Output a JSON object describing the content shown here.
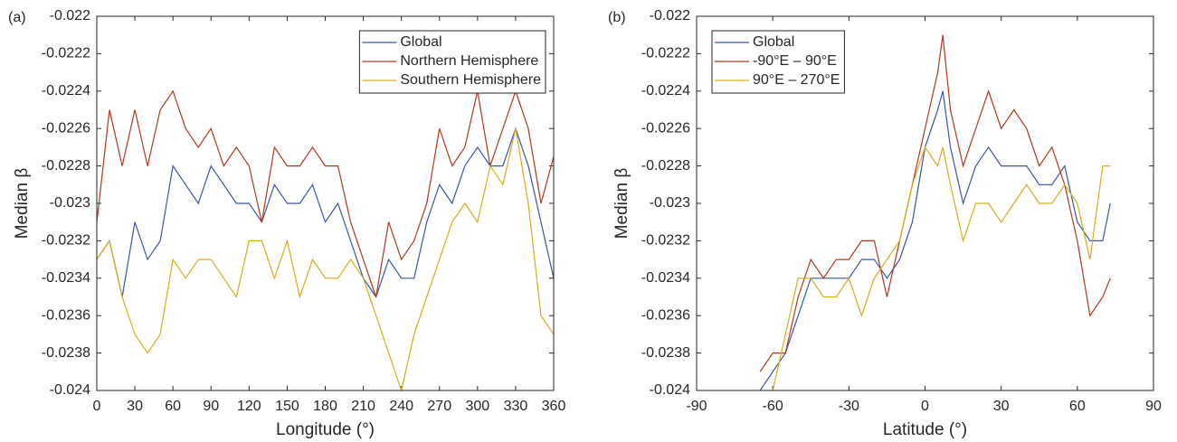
{
  "chart_data": [
    {
      "type": "line",
      "panel_label": "(a)",
      "x_label": "Longitude (°)",
      "y_label": "Median β",
      "legend": "northeast",
      "box": true,
      "x": [
        0,
        10,
        20,
        30,
        40,
        50,
        60,
        70,
        80,
        90,
        100,
        110,
        120,
        130,
        140,
        150,
        160,
        170,
        180,
        190,
        200,
        210,
        220,
        230,
        240,
        250,
        260,
        270,
        280,
        290,
        300,
        310,
        320,
        330,
        340,
        350,
        360
      ],
      "xlim": [
        0,
        360
      ],
      "xticks": [
        0,
        30,
        60,
        90,
        120,
        150,
        180,
        210,
        240,
        270,
        300,
        330,
        360
      ],
      "ylim": [
        -0.024,
        -0.022
      ],
      "yticks": [
        -0.024,
        -0.0238,
        -0.0236,
        -0.0234,
        -0.0232,
        -0.023,
        -0.0228,
        -0.0226,
        -0.0224,
        -0.0222,
        -0.022
      ],
      "series": [
        {
          "name": "Global",
          "color": "#3a55a4",
          "values": [
            -0.0233,
            -0.0232,
            -0.0235,
            -0.0231,
            -0.0233,
            -0.0232,
            -0.0228,
            -0.0229,
            -0.023,
            -0.0228,
            -0.0229,
            -0.023,
            -0.023,
            -0.0231,
            -0.0229,
            -0.023,
            -0.023,
            -0.0229,
            -0.0231,
            -0.023,
            -0.0232,
            -0.0234,
            -0.0235,
            -0.0233,
            -0.0234,
            -0.0234,
            -0.0231,
            -0.0229,
            -0.023,
            -0.0228,
            -0.0227,
            -0.0228,
            -0.0228,
            -0.0226,
            -0.0228,
            -0.0231,
            -0.0234
          ]
        },
        {
          "name": "Northern Hemisphere",
          "color": "#b0391b",
          "values": [
            -0.0231,
            -0.0225,
            -0.0228,
            -0.0225,
            -0.0228,
            -0.0225,
            -0.0224,
            -0.0226,
            -0.0227,
            -0.0226,
            -0.0228,
            -0.0227,
            -0.0228,
            -0.0231,
            -0.0227,
            -0.0228,
            -0.0228,
            -0.0227,
            -0.0228,
            -0.0228,
            -0.0231,
            -0.0233,
            -0.0235,
            -0.0231,
            -0.0233,
            -0.0232,
            -0.023,
            -0.0226,
            -0.0228,
            -0.0227,
            -0.0224,
            -0.0228,
            -0.0226,
            -0.0224,
            -0.0226,
            -0.023,
            -0.02275
          ]
        },
        {
          "name": "Southern Hemisphere",
          "color": "#d6ad1e",
          "values": [
            -0.0233,
            -0.0232,
            -0.0235,
            -0.0237,
            -0.0238,
            -0.0237,
            -0.0233,
            -0.0234,
            -0.0233,
            -0.0233,
            -0.0234,
            -0.0235,
            -0.0232,
            -0.0232,
            -0.0234,
            -0.0232,
            -0.0235,
            -0.0233,
            -0.0234,
            -0.0234,
            -0.0233,
            -0.0234,
            -0.0236,
            -0.0238,
            -0.024,
            -0.0237,
            -0.0235,
            -0.0233,
            -0.0231,
            -0.023,
            -0.0231,
            -0.0228,
            -0.0229,
            -0.0226,
            -0.023,
            -0.0236,
            -0.0237
          ]
        }
      ]
    },
    {
      "type": "line",
      "panel_label": "(b)",
      "x_label": "Latitude (°)",
      "y_label": "Median β",
      "legend": "northwest",
      "box": true,
      "x": [
        -65,
        -60,
        -55,
        -50,
        -45,
        -40,
        -35,
        -30,
        -25,
        -20,
        -15,
        -10,
        -5,
        0,
        5,
        7,
        10,
        15,
        20,
        25,
        30,
        35,
        40,
        45,
        50,
        55,
        60,
        65,
        70,
        73
      ],
      "xlim": [
        -90,
        90
      ],
      "xticks": [
        -90,
        -60,
        -30,
        0,
        30,
        60,
        90
      ],
      "ylim": [
        -0.024,
        -0.022
      ],
      "yticks": [
        -0.024,
        -0.0238,
        -0.0236,
        -0.0234,
        -0.0232,
        -0.023,
        -0.0228,
        -0.0226,
        -0.0224,
        -0.0222,
        -0.022
      ],
      "series": [
        {
          "name": "Global",
          "color": "#3a55a4",
          "values": [
            -0.024,
            -0.0239,
            -0.0238,
            -0.0236,
            -0.0234,
            -0.0234,
            -0.0234,
            -0.0234,
            -0.0233,
            -0.0233,
            -0.0234,
            -0.0233,
            -0.0231,
            -0.0227,
            -0.0225,
            -0.0224,
            -0.0227,
            -0.023,
            -0.0228,
            -0.0227,
            -0.0228,
            -0.0228,
            -0.0228,
            -0.0229,
            -0.0229,
            -0.0228,
            -0.0231,
            -0.0232,
            -0.0232,
            -0.023
          ]
        },
        {
          "name": "-90°E – 90°E",
          "color": "#b0391b",
          "values": [
            -0.0239,
            -0.0238,
            -0.0238,
            -0.0235,
            -0.0233,
            -0.0234,
            -0.0233,
            -0.0233,
            -0.0232,
            -0.0232,
            -0.0235,
            -0.0232,
            -0.0229,
            -0.0226,
            -0.0223,
            -0.0221,
            -0.0225,
            -0.0228,
            -0.0226,
            -0.0224,
            -0.0226,
            -0.0225,
            -0.0226,
            -0.0228,
            -0.0227,
            -0.0229,
            -0.0232,
            -0.0236,
            -0.0235,
            -0.0234
          ]
        },
        {
          "name": "90°E – 270°E",
          "color": "#d6ad1e",
          "values": [
            null,
            -0.024,
            -0.0237,
            -0.0234,
            -0.0234,
            -0.0235,
            -0.0235,
            -0.0234,
            -0.0236,
            -0.0234,
            -0.0233,
            -0.0232,
            -0.0229,
            -0.0227,
            -0.0228,
            -0.0227,
            -0.0229,
            -0.0232,
            -0.023,
            -0.023,
            -0.0231,
            -0.023,
            -0.0229,
            -0.023,
            -0.023,
            -0.0229,
            -0.023,
            -0.0233,
            -0.0228,
            -0.0228
          ]
        }
      ]
    }
  ]
}
